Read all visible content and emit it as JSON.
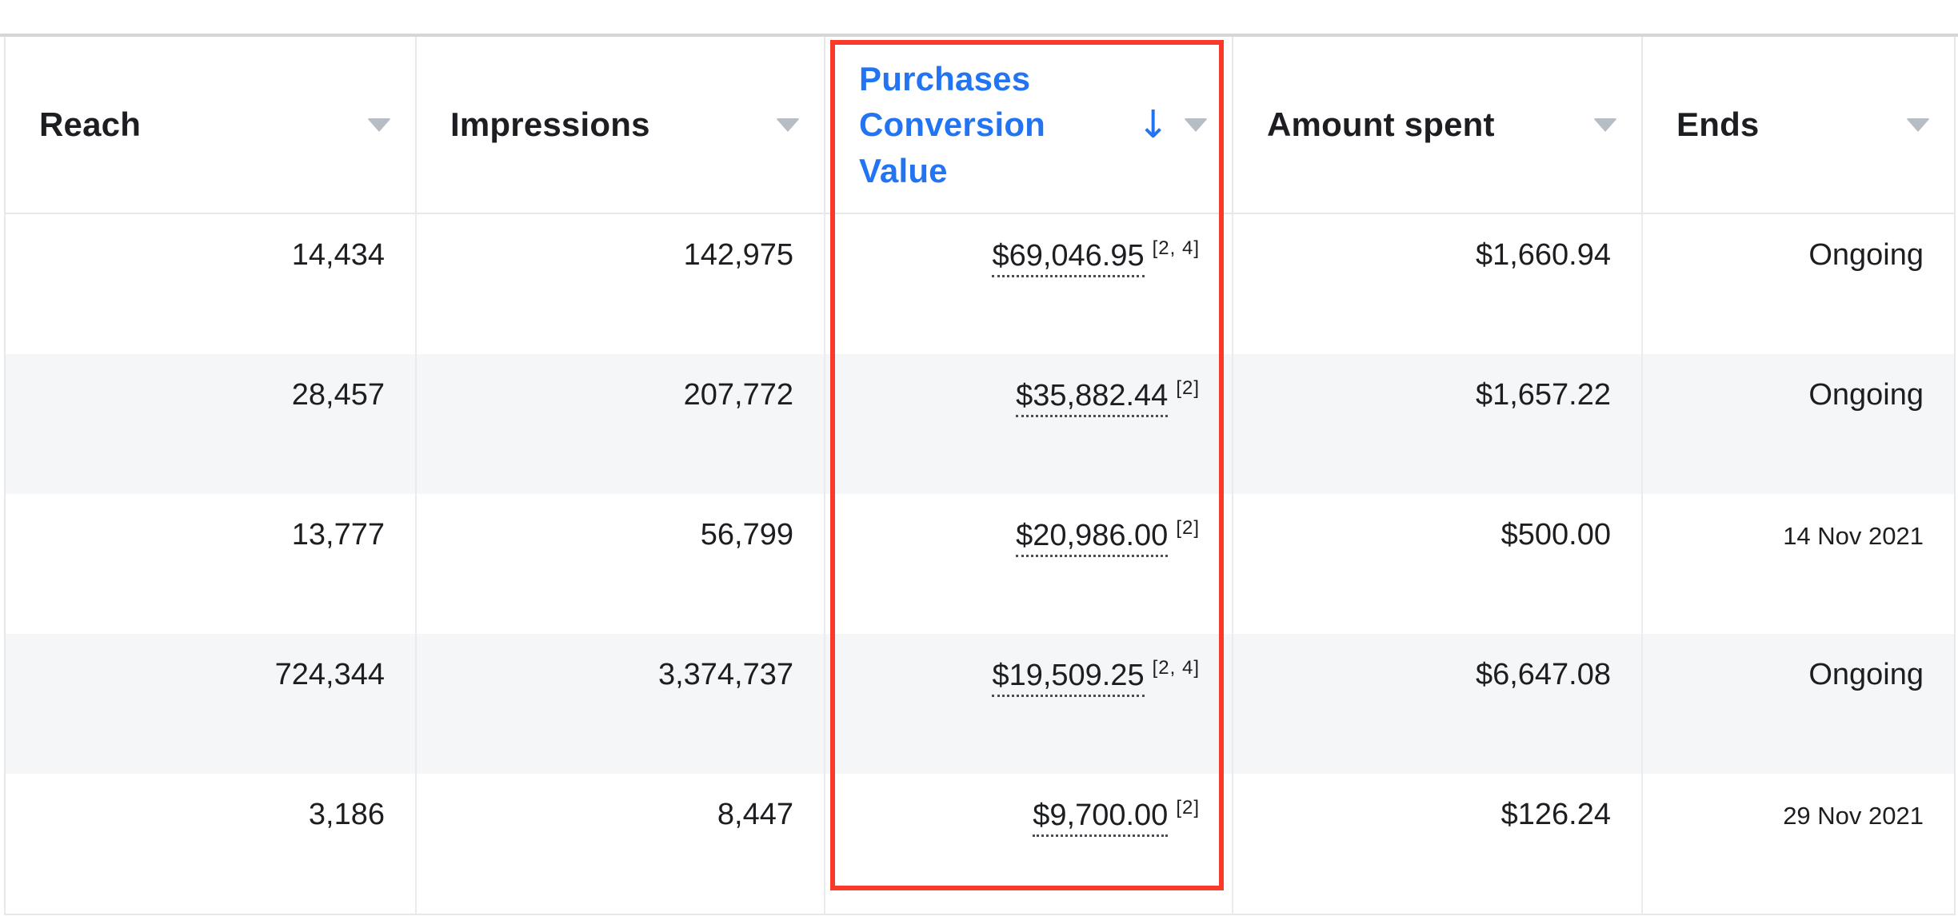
{
  "colors": {
    "accent_blue": "#2374f2",
    "highlight_red": "#f93a2b",
    "stripe_gray": "#f5f6f7"
  },
  "table": {
    "sort_indicator": "↓",
    "columns": [
      {
        "label": "Reach"
      },
      {
        "label": "Impressions"
      },
      {
        "label": "Purchases Conversion Value",
        "sorted": "descending",
        "highlighted": true
      },
      {
        "label": "Amount spent"
      },
      {
        "label": "Ends"
      }
    ],
    "rows": [
      {
        "reach": "14,434",
        "impressions": "142,975",
        "pcv": "$69,046.95",
        "pcv_note": "[2, 4]",
        "amount_spent": "$1,660.94",
        "ends": "Ongoing"
      },
      {
        "reach": "28,457",
        "impressions": "207,772",
        "pcv": "$35,882.44",
        "pcv_note": "[2]",
        "amount_spent": "$1,657.22",
        "ends": "Ongoing"
      },
      {
        "reach": "13,777",
        "impressions": "56,799",
        "pcv": "$20,986.00",
        "pcv_note": "[2]",
        "amount_spent": "$500.00",
        "ends": "14 Nov 2021"
      },
      {
        "reach": "724,344",
        "impressions": "3,374,737",
        "pcv": "$19,509.25",
        "pcv_note": "[2, 4]",
        "amount_spent": "$6,647.08",
        "ends": "Ongoing"
      },
      {
        "reach": "3,186",
        "impressions": "8,447",
        "pcv": "$9,700.00",
        "pcv_note": "[2]",
        "amount_spent": "$126.24",
        "ends": "29 Nov 2021"
      }
    ]
  }
}
